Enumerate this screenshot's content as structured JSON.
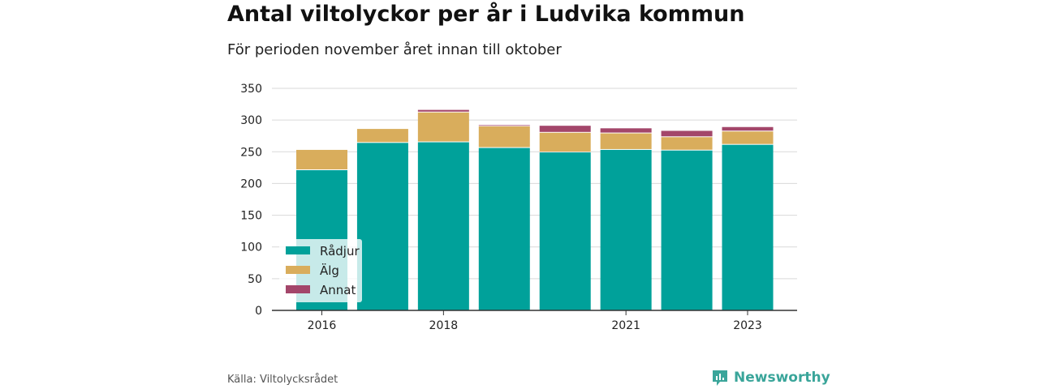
{
  "header": {
    "title": "Antal viltolyckor per år i Ludvika kommun",
    "subtitle": "För perioden november året innan till oktober"
  },
  "footer": {
    "source": "Källa: Viltolycksrådet",
    "brand": "Newsworthy"
  },
  "icons": {
    "brand_logo": "bar-chart-logo-icon"
  },
  "colors": {
    "radjur": "#00a19a",
    "alg": "#d9ad5c",
    "annat": "#a3466a",
    "brand": "#3aa59a"
  },
  "chart_data": {
    "type": "bar",
    "stacked": true,
    "categories": [
      "2016",
      "2017",
      "2018",
      "2019",
      "2020",
      "2021",
      "2022",
      "2023"
    ],
    "x_tick_labels": [
      "2016",
      "",
      "2018",
      "",
      "",
      "2021",
      "",
      "2023"
    ],
    "series": [
      {
        "name": "Rådjur",
        "color": "#00a19a",
        "values": [
          221,
          264,
          265,
          256,
          249,
          253,
          252,
          261
        ]
      },
      {
        "name": "Älg",
        "color": "#d9ad5c",
        "values": [
          32,
          22,
          47,
          34,
          31,
          26,
          21,
          21
        ]
      },
      {
        "name": "Annat",
        "color": "#a3466a",
        "values": [
          0,
          0,
          4,
          2,
          11,
          8,
          10,
          7
        ]
      }
    ],
    "ylim": [
      0,
      350
    ],
    "yticks": [
      0,
      50,
      100,
      150,
      200,
      250,
      300,
      350
    ],
    "grid": true,
    "legend_position": "bottom-left"
  }
}
